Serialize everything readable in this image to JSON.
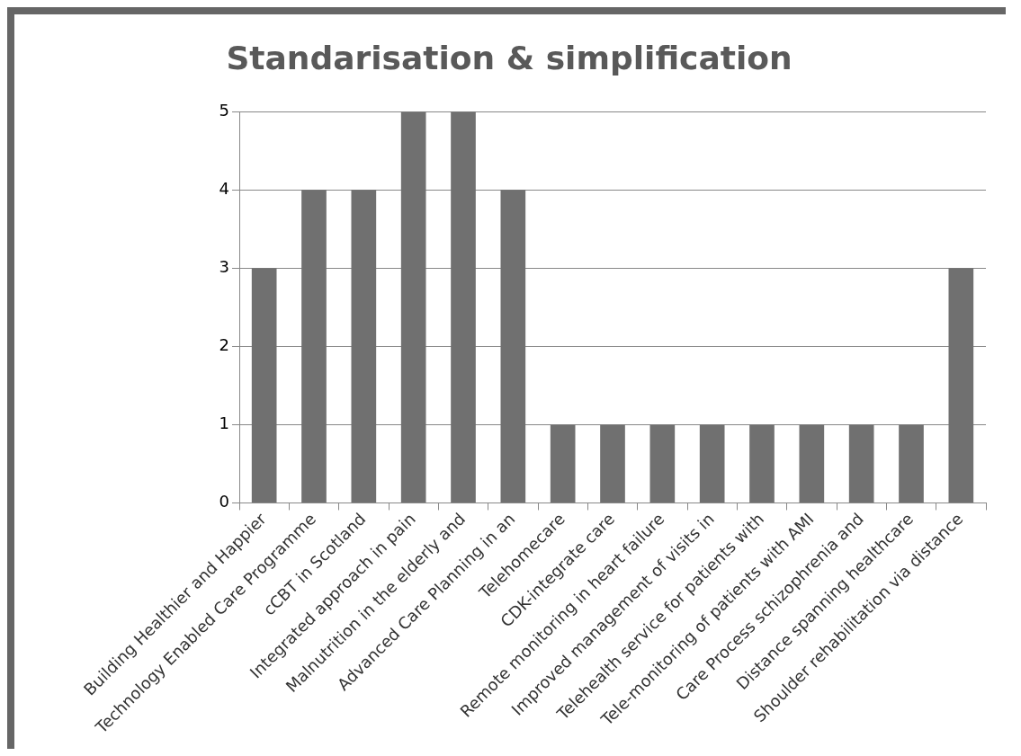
{
  "chart_data": {
    "type": "bar",
    "title": "Standarisation & simplification",
    "categories": [
      "Building Healthier and Happier",
      "Technology Enabled Care Programme",
      "cCBT in Scotland",
      "Integrated approach in pain",
      "Malnutrition in the elderly and",
      "Advanced Care Planning in an",
      "Telehomecare",
      "CDK-integrate care",
      "Remote monitoring in heart failure",
      "Improved management of visits in",
      "Telehealth service for patients with",
      "Tele-monitoring of patients with AMI",
      "Care Process schizophrenia and",
      "Distance spanning healthcare",
      "Shoulder rehabilitation via distance"
    ],
    "values": [
      3,
      4,
      4,
      5,
      5,
      4,
      1,
      1,
      1,
      1,
      1,
      1,
      1,
      1,
      3
    ],
    "color": "#707070",
    "ylim": [
      0,
      5
    ],
    "yticks": [
      0,
      1,
      2,
      3,
      4,
      5
    ],
    "grid": "y",
    "legend": false
  }
}
